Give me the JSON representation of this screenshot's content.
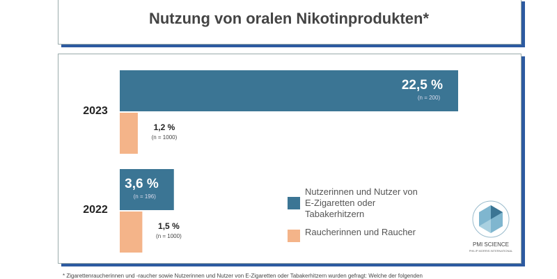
{
  "chart_data": {
    "type": "hbar",
    "title": "Nutzung von oralen Nikotinprodukten*",
    "categories": [
      "2023",
      "2022"
    ],
    "series": [
      {
        "name": "Nutzerinnen und Nutzer von E-Zigaretten oder Tabakerhitzern",
        "color": "#3b7594",
        "values": [
          22.5,
          3.6
        ],
        "value_labels": [
          "22,5 %",
          "3,6 %"
        ],
        "n_labels": [
          "(n = 200)",
          "(n = 196)"
        ]
      },
      {
        "name": "Raucherinnen und Raucher",
        "color": "#f4b489",
        "values": [
          1.2,
          1.5
        ],
        "value_labels": [
          "1,2 %",
          "1,5 %"
        ],
        "n_labels": [
          "(n = 1000)",
          "(n = 1000)"
        ]
      }
    ],
    "footnote": "* Zigarettenraucherinnen und -raucher sowie Nutzerinnen und Nutzer von E-Zigaretten oder Tabakerhitzern wurden gefragt: Welche der folgenden"
  },
  "logo": {
    "name": "PMI SCIENCE",
    "sub": "PHILIP MORRIS INTERNATIONAL"
  }
}
